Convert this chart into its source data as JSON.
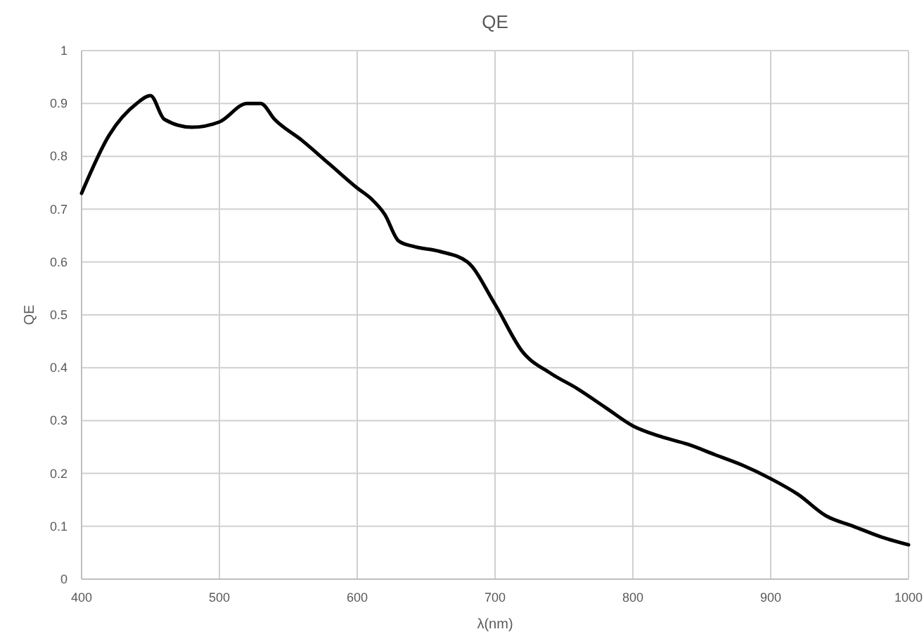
{
  "chart_data": {
    "type": "line",
    "title": "QE",
    "xlabel": "λ(nm)",
    "ylabel": "QE",
    "xlim": [
      400,
      1000
    ],
    "xticks": [
      400,
      500,
      600,
      700,
      800,
      900,
      1000
    ],
    "ylim": [
      0,
      1
    ],
    "yticks": [
      0,
      0.1,
      0.2,
      0.3,
      0.4,
      0.5,
      0.6,
      0.7,
      0.8,
      0.9,
      1
    ],
    "grid": true,
    "marker": "none",
    "line_style": "solid",
    "x": [
      400,
      420,
      440,
      450,
      460,
      480,
      500,
      520,
      530,
      540,
      560,
      580,
      600,
      610,
      620,
      630,
      640,
      660,
      680,
      700,
      720,
      740,
      760,
      780,
      800,
      820,
      840,
      860,
      880,
      900,
      920,
      940,
      960,
      980,
      1000
    ],
    "series": [
      {
        "color": "#000000",
        "values": [
          0.73,
          0.84,
          0.9,
          0.915,
          0.87,
          0.855,
          0.865,
          0.9,
          0.9,
          0.87,
          0.83,
          0.785,
          0.74,
          0.72,
          0.69,
          0.64,
          0.63,
          0.62,
          0.6,
          0.52,
          0.43,
          0.39,
          0.36,
          0.325,
          0.29,
          0.27,
          0.255,
          0.235,
          0.215,
          0.19,
          0.16,
          0.12,
          0.1,
          0.08,
          0.065
        ]
      }
    ]
  }
}
